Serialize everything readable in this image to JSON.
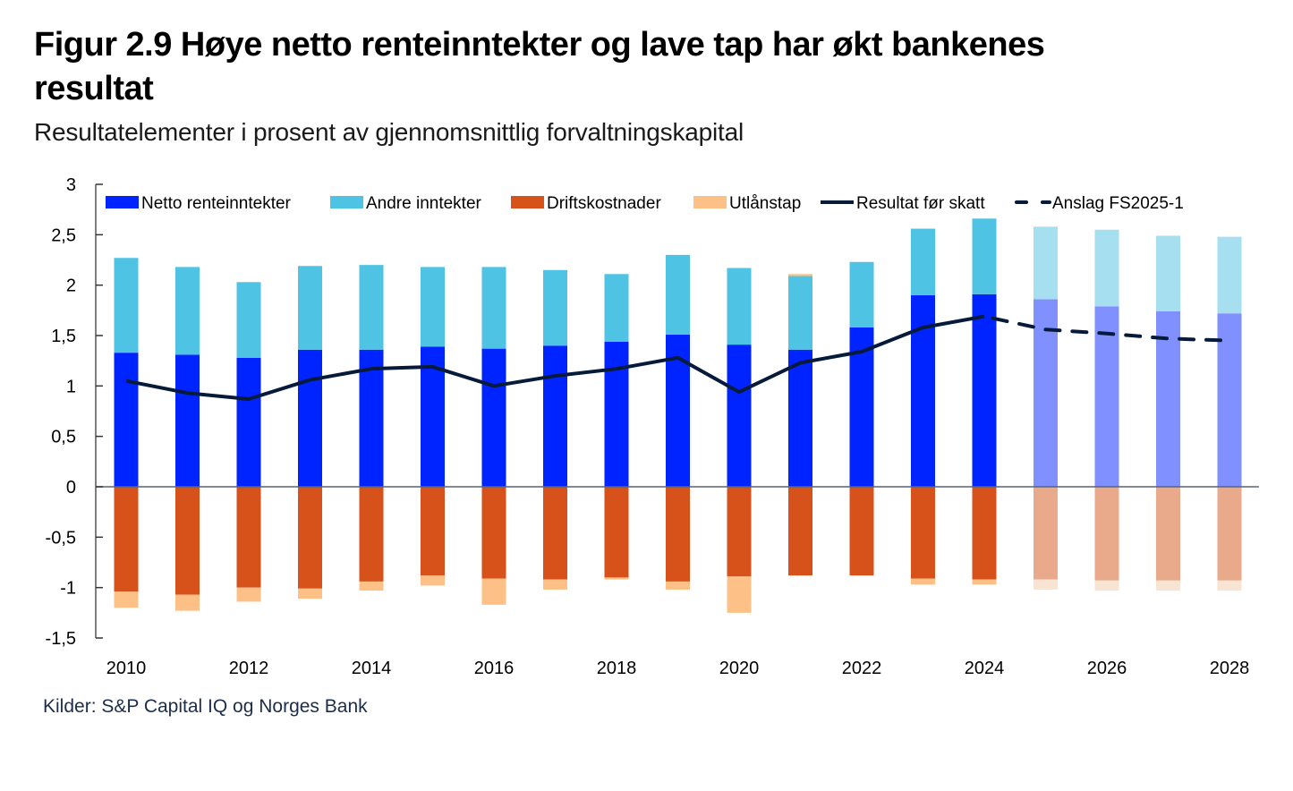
{
  "chart_data": {
    "type": "bar",
    "stacked": true,
    "title": "Figur 2.9 Høye netto renteinntekter og lave tap har økt bankenes resultat",
    "subtitle": "Resultatelementer i prosent av gjennomsnittlig forvaltningskapital",
    "source": "Kilder: S&P Capital IQ og Norges Bank",
    "xlabel": "",
    "ylabel": "",
    "ylim": [
      -1.5,
      3
    ],
    "yticks": [
      3,
      2.5,
      2,
      1.5,
      1,
      0.5,
      0,
      -0.5,
      -1,
      -1.5
    ],
    "ytick_labels": [
      "3",
      "2,5",
      "2",
      "1,5",
      "1",
      "0,5",
      "0",
      "-0,5",
      "-1",
      "-1,5"
    ],
    "categories": [
      "2010",
      "2011",
      "2012",
      "2013",
      "2014",
      "2015",
      "2016",
      "2017",
      "2018",
      "2019",
      "2020",
      "2021",
      "2022",
      "2023",
      "2024",
      "2025",
      "2026",
      "2027",
      "2028"
    ],
    "xtick_labels": [
      "2010",
      "",
      "2012",
      "",
      "2014",
      "",
      "2016",
      "",
      "2018",
      "",
      "2020",
      "",
      "2022",
      "",
      "2024",
      "",
      "2026",
      "",
      "2028"
    ],
    "forecast_from": "2025",
    "legend_position": "top",
    "series": [
      {
        "name": "Netto renteinntekter",
        "kind": "bar",
        "color": "#0024ff",
        "forecast_color": "#8090ff",
        "values": [
          1.33,
          1.31,
          1.28,
          1.36,
          1.36,
          1.39,
          1.37,
          1.4,
          1.44,
          1.51,
          1.41,
          1.36,
          1.58,
          1.9,
          1.91,
          1.86,
          1.79,
          1.74,
          1.72
        ]
      },
      {
        "name": "Andre inntekter",
        "kind": "bar",
        "color": "#4fc3e3",
        "forecast_color": "#a6dff0",
        "values": [
          0.94,
          0.87,
          0.75,
          0.83,
          0.84,
          0.79,
          0.81,
          0.75,
          0.67,
          0.79,
          0.76,
          0.73,
          0.65,
          0.66,
          0.75,
          0.72,
          0.76,
          0.75,
          0.76
        ]
      },
      {
        "name": "Driftskostnader",
        "kind": "bar",
        "color": "#d7521a",
        "forecast_color": "#e9a98b",
        "values": [
          -1.04,
          -1.07,
          -1.0,
          -1.01,
          -0.94,
          -0.88,
          -0.91,
          -0.92,
          -0.9,
          -0.94,
          -0.89,
          -0.88,
          -0.88,
          -0.91,
          -0.92,
          -0.92,
          -0.93,
          -0.93,
          -0.93
        ]
      },
      {
        "name": "Utlånstap",
        "kind": "bar",
        "color": "#fdc086",
        "forecast_color": "#f8e4d2",
        "values": [
          -0.16,
          -0.16,
          -0.14,
          -0.1,
          -0.09,
          -0.1,
          -0.26,
          -0.1,
          -0.02,
          -0.08,
          -0.36,
          0.02,
          0.0,
          -0.06,
          -0.05,
          -0.1,
          -0.1,
          -0.1,
          -0.1
        ]
      },
      {
        "name": "Resultat før skatt",
        "kind": "line",
        "color": "#061a3a",
        "values": [
          1.05,
          0.93,
          0.87,
          1.06,
          1.17,
          1.19,
          1.0,
          1.1,
          1.17,
          1.28,
          0.94,
          1.23,
          1.34,
          1.58,
          1.69,
          null,
          null,
          null,
          null
        ]
      },
      {
        "name": "Anslag FS2025-1",
        "kind": "line-dashed",
        "color": "#061a3a",
        "values": [
          null,
          null,
          null,
          null,
          null,
          null,
          null,
          null,
          null,
          null,
          null,
          null,
          null,
          null,
          1.69,
          1.56,
          1.52,
          1.47,
          1.45
        ]
      }
    ]
  }
}
